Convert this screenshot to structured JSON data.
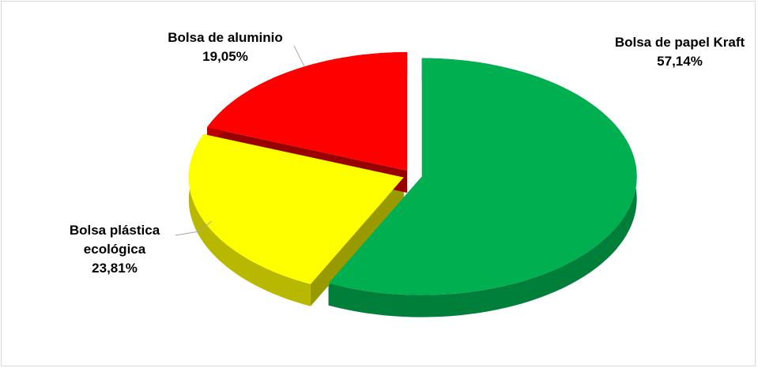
{
  "chart_data": {
    "type": "pie3d",
    "categories": [
      "Bolsa de papel Kraft",
      "Bolsa plástica ecológica",
      "Bolsa de aluminio"
    ],
    "values": [
      57.14,
      23.81,
      19.05
    ],
    "value_labels": [
      "57,14%",
      "23,81%",
      "19,05%"
    ],
    "colors": [
      "#00b050",
      "#ffff00",
      "#ff0000"
    ]
  }
}
